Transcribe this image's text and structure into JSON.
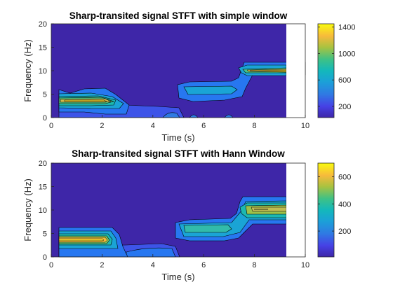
{
  "chart_data": [
    {
      "type": "contour",
      "title": "Sharp-transited signal STFT with simple window",
      "xlabel": "Time (s)",
      "ylabel": "Frequency (Hz)",
      "xlim": [
        0,
        10
      ],
      "ylim": [
        0,
        20
      ],
      "xticks": [
        "0",
        "2",
        "4",
        "6",
        "8",
        "10"
      ],
      "yticks": [
        "0",
        "5",
        "10",
        "15",
        "20"
      ],
      "data_time_extent": [
        0.3,
        9.3
      ],
      "colorbar": {
        "range": [
          30,
          1450
        ],
        "ticks": [
          200,
          600,
          1000,
          1400
        ],
        "tick_labels": [
          "200",
          "600",
          "1000",
          "1400"
        ],
        "colormap": "parula"
      },
      "regions": [
        {
          "segment": 1,
          "time_s": [
            0.3,
            2.8
          ],
          "frequency_hz": 3.3,
          "peak": 1450
        },
        {
          "segment": 2,
          "time_s": [
            5.2,
            7.3
          ],
          "frequency_hz": 6.7,
          "peak": 420
        },
        {
          "segment": 3,
          "time_s": [
            7.5,
            9.3
          ],
          "frequency_hz": 10,
          "peak": 1200
        }
      ]
    },
    {
      "type": "contour",
      "title": "Sharp-transited signal STFT with Hann Window",
      "xlabel": "Time (s)",
      "ylabel": "Frequency (Hz)",
      "xlim": [
        0,
        10
      ],
      "ylim": [
        0,
        20
      ],
      "xticks": [
        "0",
        "2",
        "4",
        "6",
        "8",
        "10"
      ],
      "yticks": [
        "0",
        "5",
        "10",
        "15",
        "20"
      ],
      "data_time_extent": [
        0.3,
        9.3
      ],
      "colorbar": {
        "range": [
          10,
          700
        ],
        "ticks": [
          200,
          400,
          600
        ],
        "tick_labels": [
          "200",
          "400",
          "600"
        ],
        "colormap": "parula"
      },
      "regions": [
        {
          "segment": 1,
          "time_s": [
            0.3,
            2.8
          ],
          "frequency_hz": 3.3,
          "peak": 700
        },
        {
          "segment": 2,
          "time_s": [
            5.2,
            7.3
          ],
          "frequency_hz": 6.7,
          "peak": 330
        },
        {
          "segment": 3,
          "time_s": [
            7.5,
            9.3
          ],
          "frequency_hz": 10,
          "peak": 500
        }
      ]
    }
  ]
}
